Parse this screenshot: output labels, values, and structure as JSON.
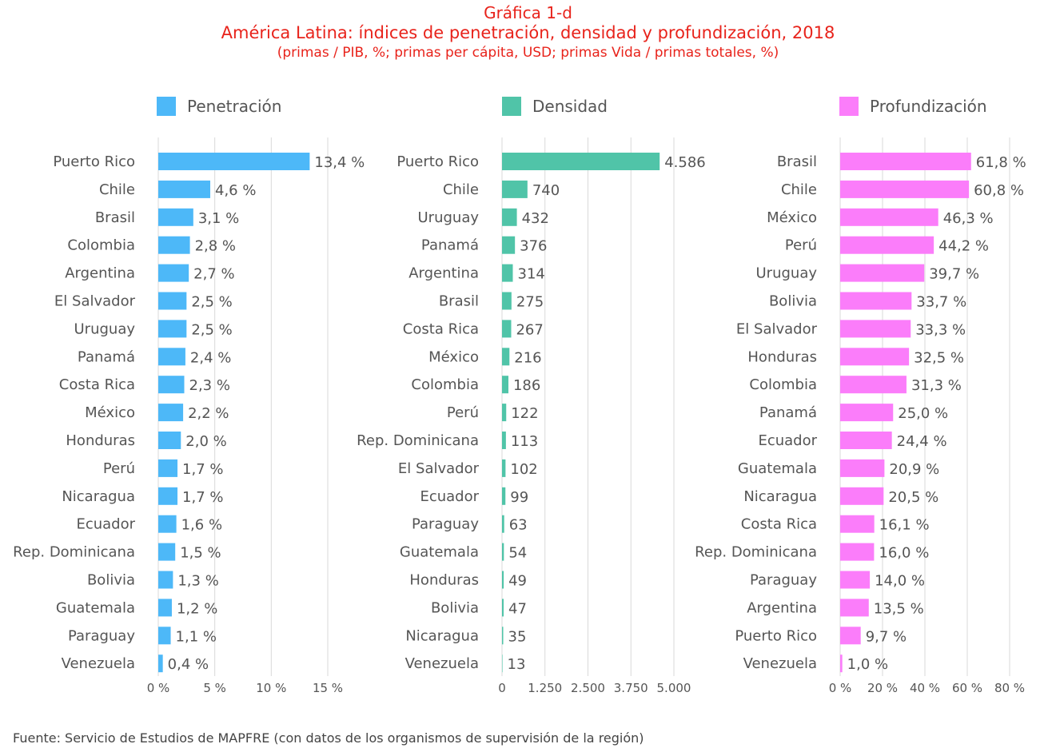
{
  "header": {
    "title": "Gráfica  1-d",
    "subtitle": "América Latina: índices de penetración, densidad y profundización, 2018",
    "units": "(primas / PIB, %; primas per cápita, USD; primas Vida / primas totales, %)"
  },
  "source": "Fuente: Servicio de Estudios de MAPFRE (con datos de los organismos de supervisión de la región)",
  "colors": {
    "penetracion": "#4db8f8",
    "densidad": "#50c4a8",
    "profundizacion": "#fb7dfa",
    "title": "#e8231b"
  },
  "chart_data": [
    {
      "type": "bar",
      "orientation": "horizontal",
      "legend": "Penetración",
      "color": "#4db8f8",
      "xlim": [
        0,
        15
      ],
      "ticks": [
        "0 %",
        "5 %",
        "10 %",
        "15 %"
      ],
      "tick_values": [
        0,
        5,
        10,
        15
      ],
      "categories": [
        "Puerto Rico",
        "Chile",
        "Brasil",
        "Colombia",
        "Argentina",
        "El Salvador",
        "Uruguay",
        "Panamá",
        "Costa Rica",
        "México",
        "Honduras",
        "Perú",
        "Nicaragua",
        "Ecuador",
        "Rep. Dominicana",
        "Bolivia",
        "Guatemala",
        "Paraguay",
        "Venezuela"
      ],
      "values": [
        13.4,
        4.6,
        3.1,
        2.8,
        2.7,
        2.5,
        2.5,
        2.4,
        2.3,
        2.2,
        2.0,
        1.7,
        1.7,
        1.6,
        1.5,
        1.3,
        1.2,
        1.1,
        0.4
      ],
      "labels": [
        "13,4 %",
        "4,6 %",
        "3,1 %",
        "2,8 %",
        "2,7 %",
        "2,5 %",
        "2,5 %",
        "2,4 %",
        "2,3 %",
        "2,2 %",
        "2,0 %",
        "1,7 %",
        "1,7 %",
        "1,6 %",
        "1,5 %",
        "1,3 %",
        "1,2 %",
        "1,1 %",
        "0,4 %"
      ]
    },
    {
      "type": "bar",
      "orientation": "horizontal",
      "legend": "Densidad",
      "color": "#50c4a8",
      "xlim": [
        0,
        5000
      ],
      "ticks": [
        "0",
        "1.250",
        "2.500",
        "3.750",
        "5.000"
      ],
      "tick_values": [
        0,
        1250,
        2500,
        3750,
        5000
      ],
      "categories": [
        "Puerto Rico",
        "Chile",
        "Uruguay",
        "Panamá",
        "Argentina",
        "Brasil",
        "Costa Rica",
        "México",
        "Colombia",
        "Perú",
        "Rep. Dominicana",
        "El Salvador",
        "Ecuador",
        "Paraguay",
        "Guatemala",
        "Honduras",
        "Bolivia",
        "Nicaragua",
        "Venezuela"
      ],
      "values": [
        4586,
        740,
        432,
        376,
        314,
        275,
        267,
        216,
        186,
        122,
        113,
        102,
        99,
        63,
        54,
        49,
        47,
        35,
        13
      ],
      "labels": [
        "4.586",
        "740",
        "432",
        "376",
        "314",
        "275",
        "267",
        "216",
        "186",
        "122",
        "113",
        "102",
        "99",
        "63",
        "54",
        "49",
        "47",
        "35",
        "13"
      ]
    },
    {
      "type": "bar",
      "orientation": "horizontal",
      "legend": "Profundización",
      "color": "#fb7dfa",
      "xlim": [
        0,
        80
      ],
      "ticks": [
        "0 %",
        "20 %",
        "40 %",
        "60 %",
        "80 %"
      ],
      "tick_values": [
        0,
        20,
        40,
        60,
        80
      ],
      "categories": [
        "Brasil",
        "Chile",
        "México",
        "Perú",
        "Uruguay",
        "Bolivia",
        "El Salvador",
        "Honduras",
        "Colombia",
        "Panamá",
        "Ecuador",
        "Guatemala",
        "Nicaragua",
        "Costa Rica",
        "Rep. Dominicana",
        "Paraguay",
        "Argentina",
        "Puerto Rico",
        "Venezuela"
      ],
      "values": [
        61.8,
        60.8,
        46.3,
        44.2,
        39.7,
        33.7,
        33.3,
        32.5,
        31.3,
        25.0,
        24.4,
        20.9,
        20.5,
        16.1,
        16.0,
        14.0,
        13.5,
        9.7,
        1.0
      ],
      "labels": [
        "61,8 %",
        "60,8 %",
        "46,3 %",
        "44,2 %",
        "39,7 %",
        "33,7 %",
        "33,3 %",
        "32,5 %",
        "31,3 %",
        "25,0 %",
        "24,4 %",
        "20,9 %",
        "20,5 %",
        "16,1 %",
        "16,0 %",
        "14,0 %",
        "13,5 %",
        "9,7 %",
        "1,0 %"
      ]
    }
  ]
}
